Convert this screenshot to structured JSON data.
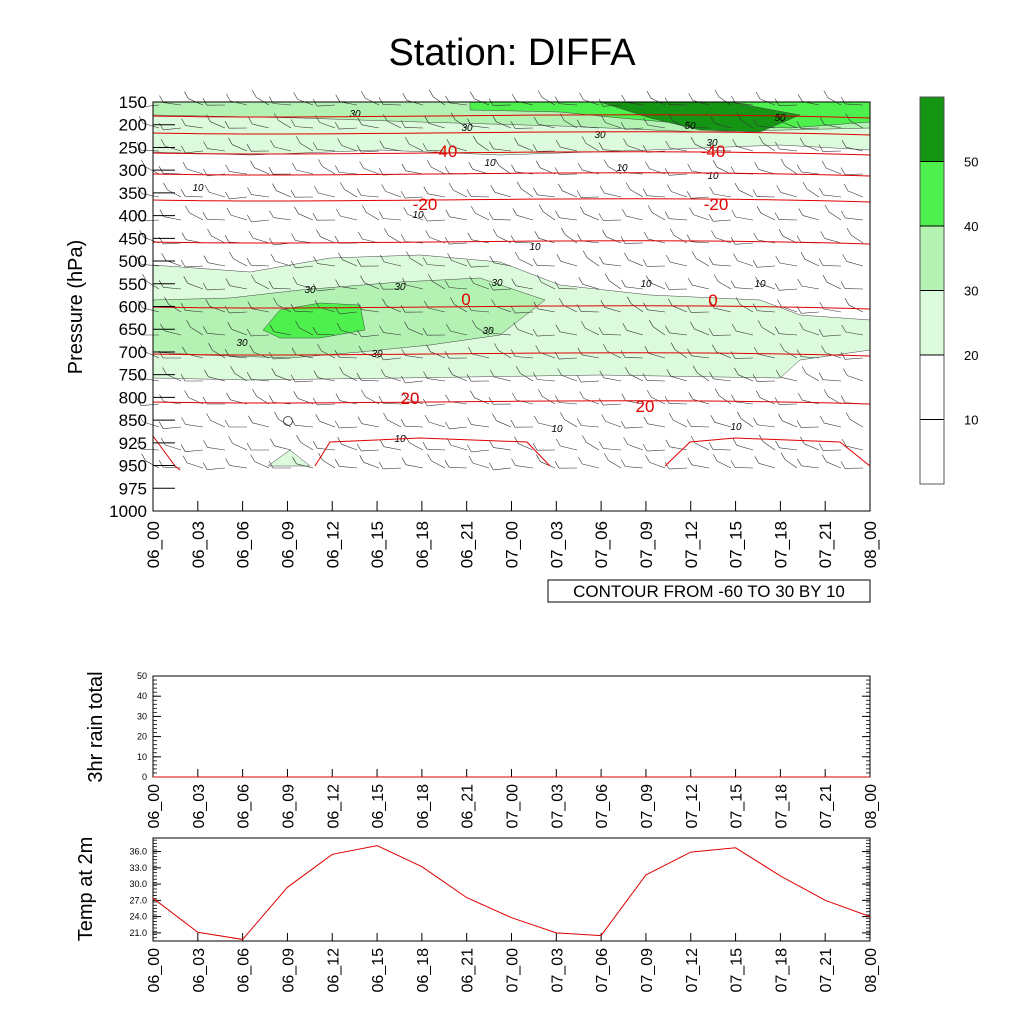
{
  "title": "Station: DIFFA",
  "chart_data": [
    {
      "type": "contour",
      "panel": "upper-air",
      "ylabel": "Pressure (hPa)",
      "ylevels": [
        "150",
        "200",
        "250",
        "300",
        "350",
        "400",
        "450",
        "500",
        "550",
        "600",
        "650",
        "700",
        "750",
        "800",
        "850",
        "925",
        "950",
        "975",
        "1000"
      ],
      "xticks": [
        "06_00",
        "06_03",
        "06_06",
        "06_09",
        "06_12",
        "06_15",
        "06_18",
        "06_21",
        "07_00",
        "07_03",
        "07_06",
        "07_09",
        "07_12",
        "07_15",
        "07_18",
        "07_21",
        "08_00"
      ],
      "colorbar": {
        "labels": [
          "10",
          "20",
          "30",
          "40",
          "50"
        ],
        "colors": [
          "#ffffff",
          "#ffffff",
          "#dcfadc",
          "#b3f2b3",
          "#4ef04e",
          "#149614"
        ]
      },
      "temperature_contours": [
        {
          "label": "-40",
          "level": 255
        },
        {
          "label": "-20",
          "level": 370
        },
        {
          "label": "0",
          "level": 595
        },
        {
          "label": "20",
          "level": 800
        }
      ],
      "wind_contour_labels": [
        "10",
        "30",
        "50"
      ],
      "info_box": "CONTOUR FROM -60 TO 30 BY 10"
    },
    {
      "type": "line",
      "panel": "rain",
      "ylabel": "3hr rain total",
      "yticks": [
        "0",
        "10",
        "20",
        "30",
        "40",
        "50"
      ],
      "ylim": [
        0,
        50
      ],
      "xticks": [
        "06_00",
        "06_03",
        "06_06",
        "06_09",
        "06_12",
        "06_15",
        "06_18",
        "06_21",
        "07_00",
        "07_03",
        "07_06",
        "07_09",
        "07_12",
        "07_15",
        "07_18",
        "07_21",
        "08_00"
      ],
      "values": [
        0,
        0,
        0,
        0,
        0,
        0,
        0,
        0,
        0,
        0,
        0,
        0,
        0,
        0,
        0,
        0,
        0
      ]
    },
    {
      "type": "line",
      "panel": "temperature",
      "ylabel": "Temp at 2m",
      "yticks": [
        "21.0",
        "24.0",
        "27.0",
        "30.0",
        "33.0",
        "36.0"
      ],
      "ylim": [
        19.5,
        38.5
      ],
      "xticks": [
        "06_00",
        "06_03",
        "06_06",
        "06_09",
        "06_12",
        "06_15",
        "06_18",
        "06_21",
        "07_00",
        "07_03",
        "07_06",
        "07_09",
        "07_12",
        "07_15",
        "07_18",
        "07_21",
        "08_00"
      ],
      "values": [
        27.4,
        21.1,
        19.8,
        29.4,
        35.5,
        37.1,
        33.2,
        27.5,
        23.8,
        21.0,
        20.5,
        31.7,
        35.9,
        36.7,
        31.5,
        27.0,
        24.0
      ],
      "color": "#e00000"
    }
  ]
}
